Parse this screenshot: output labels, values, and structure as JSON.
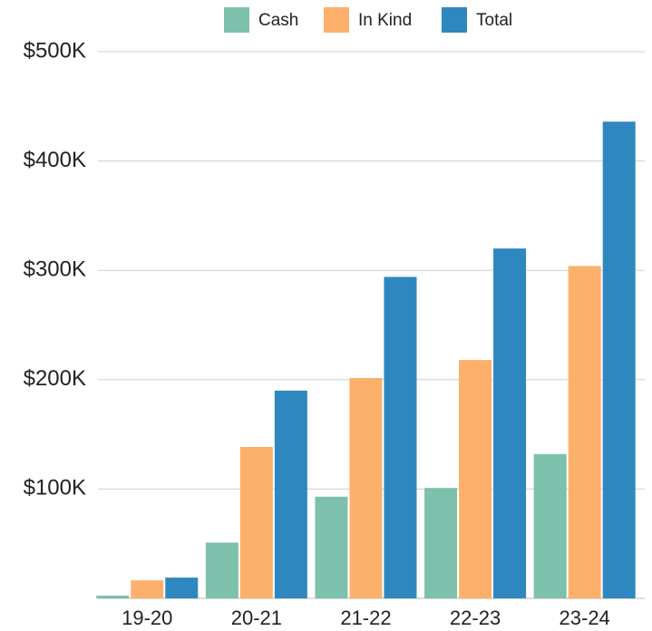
{
  "chart_data": {
    "type": "bar",
    "categories": [
      "19-20",
      "20-21",
      "21-22",
      "22-23",
      "23-24"
    ],
    "series": [
      {
        "name": "Cash",
        "color": "#7dc0ab",
        "values": [
          2500,
          51000,
          93000,
          101000,
          132000
        ]
      },
      {
        "name": "In Kind",
        "color": "#fdb06c",
        "values": [
          16500,
          138500,
          201500,
          218000,
          304000
        ]
      },
      {
        "name": "Total",
        "color": "#2e88bf",
        "values": [
          19000,
          190000,
          294000,
          320000,
          436000
        ]
      }
    ],
    "ylim": [
      0,
      500000
    ],
    "yticks": [
      {
        "value": 100000,
        "label": "$100K"
      },
      {
        "value": 200000,
        "label": "$200K"
      },
      {
        "value": 300000,
        "label": "$300K"
      },
      {
        "value": 400000,
        "label": "$400K"
      },
      {
        "value": 500000,
        "label": "$500K"
      }
    ],
    "grid": true,
    "legend": "top"
  }
}
